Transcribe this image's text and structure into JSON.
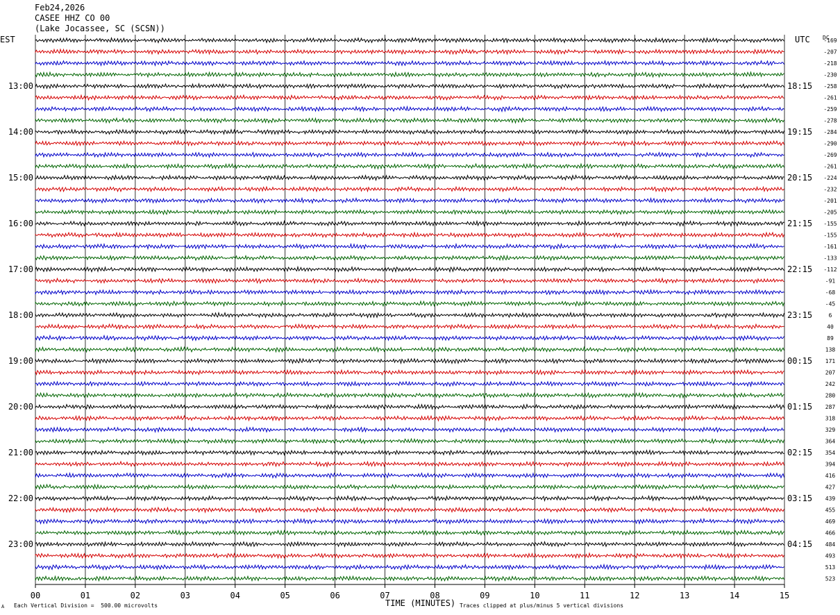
{
  "header": {
    "date": "Feb24,2026",
    "station": "CASEE HHZ CO 00",
    "location": "(Lake Jocassee, SC (SCSN))"
  },
  "left_axis_label": "EST",
  "right_axis_label": "UTC",
  "dc_header": "DC",
  "footer": {
    "scale_note": "Each Vertical Division =  500.00 microvolts",
    "xaxis_title": "TIME (MINUTES)",
    "clip_note": "Traces clipped at plus/minus 5 vertical divisions",
    "corner_mark": "A"
  },
  "colors": {
    "trace_cycle": [
      "#000000",
      "#d40000",
      "#0000c8",
      "#006400"
    ],
    "grid": "#000000"
  },
  "chart_data": {
    "type": "line",
    "subtype": "helicorder",
    "x_axis": {
      "label": "TIME (MINUTES)",
      "range": [
        0,
        15
      ],
      "tick_labels": [
        "00",
        "01",
        "02",
        "03",
        "04",
        "05",
        "06",
        "07",
        "08",
        "09",
        "10",
        "11",
        "12",
        "13",
        "14",
        "15"
      ]
    },
    "rows_per_hour": 4,
    "minutes_per_row": 15,
    "trace_count": 48,
    "est_hour_labels": [
      "13:00",
      "14:00",
      "15:00",
      "16:00",
      "17:00",
      "18:00",
      "19:00",
      "20:00",
      "21:00",
      "22:00",
      "23:00"
    ],
    "utc_hour_labels": [
      "18:15",
      "19:15",
      "20:15",
      "21:15",
      "22:15",
      "23:15",
      "00:15",
      "01:15",
      "02:15",
      "03:15",
      "04:15"
    ],
    "dc_offsets": [
      -169,
      -207,
      -218,
      -230,
      -258,
      -261,
      -259,
      -278,
      -284,
      -290,
      -269,
      -261,
      -224,
      -232,
      -201,
      -205,
      -155,
      -155,
      -161,
      -133,
      -112,
      -91,
      -68,
      -45,
      6,
      40,
      89,
      138,
      171,
      207,
      242,
      280,
      287,
      318,
      329,
      364,
      354,
      394,
      416,
      427,
      439,
      455,
      469,
      466,
      484,
      493,
      513,
      523
    ],
    "vertical_scale": "500.00 microvolts per division",
    "clip": "plus/minus 5 vertical divisions",
    "grid": true
  }
}
